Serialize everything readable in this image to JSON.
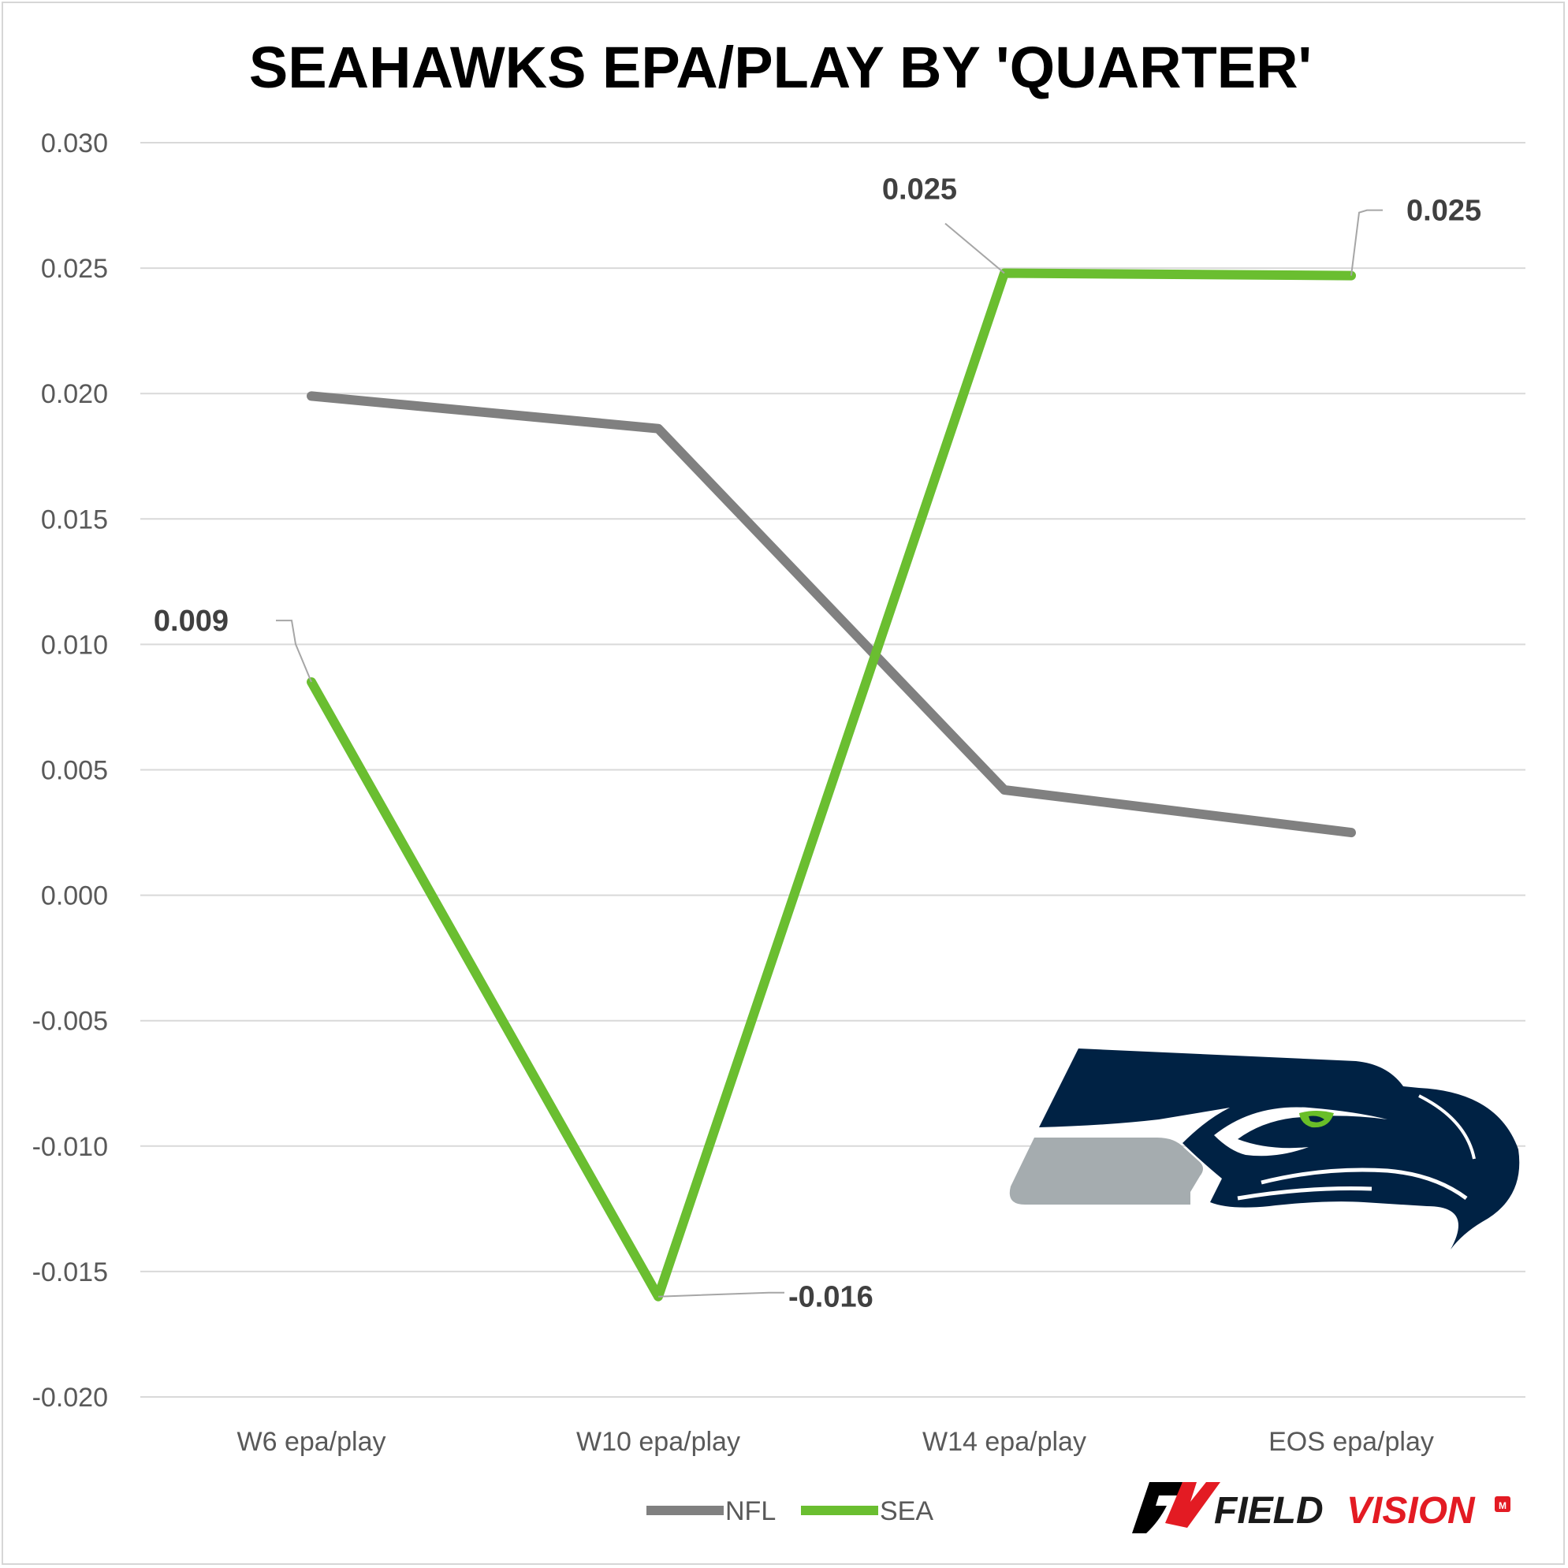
{
  "chart_data": {
    "type": "line",
    "title": "SEAHAWKS EPA/PLAY BY 'QUARTER'",
    "categories": [
      "W6 epa/play",
      "W10 epa/play",
      "W14 epa/play",
      "EOS epa/play"
    ],
    "series": [
      {
        "name": "NFL",
        "color": "#808080",
        "values": [
          0.0199,
          0.0186,
          0.0042,
          0.0025
        ]
      },
      {
        "name": "SEA",
        "color": "#6ABE30",
        "values": [
          0.0085,
          -0.016,
          0.0248,
          0.0247
        ]
      }
    ],
    "data_labels": [
      {
        "series": "SEA",
        "index": 0,
        "text": "0.009"
      },
      {
        "series": "SEA",
        "index": 1,
        "text": "-0.016"
      },
      {
        "series": "SEA",
        "index": 2,
        "text": "0.025"
      },
      {
        "series": "SEA",
        "index": 3,
        "text": "0.025"
      }
    ],
    "ylim": [
      -0.02,
      0.03
    ],
    "yticks": [
      "0.030",
      "0.025",
      "0.020",
      "0.015",
      "0.010",
      "0.005",
      "0.000",
      "-0.005",
      "-0.010",
      "-0.015",
      "-0.020"
    ],
    "ytick_values": [
      0.03,
      0.025,
      0.02,
      0.015,
      0.01,
      0.005,
      0,
      -0.005,
      -0.01,
      -0.015,
      -0.02
    ],
    "grid": true,
    "legend_position": "bottom",
    "xlabel": "",
    "ylabel": ""
  },
  "branding": {
    "team_logo": "seahawks-logo",
    "logo_colors": {
      "navy": "#002244",
      "green": "#69BE28",
      "gray": "#A5ACAF"
    },
    "brand_field": "FIELD",
    "brand_vision": "VISION",
    "brand_mark": "M"
  }
}
